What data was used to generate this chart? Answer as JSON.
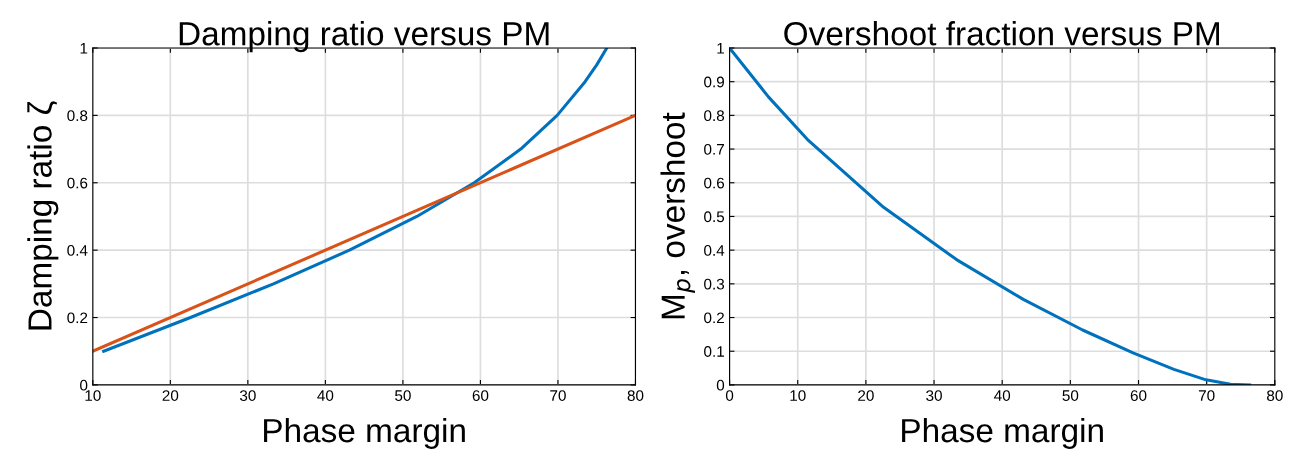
{
  "chart_data": [
    {
      "type": "line",
      "title": "Damping ratio versus PM",
      "xlabel": "Phase margin",
      "ylabel": "Damping ratio ζ",
      "xlim": [
        10,
        80
      ],
      "ylim": [
        0,
        1
      ],
      "xticks": [
        10,
        20,
        30,
        40,
        50,
        60,
        70,
        80
      ],
      "yticks": [
        0,
        0.2,
        0.4,
        0.6,
        0.8,
        1
      ],
      "grid": true,
      "series": [
        {
          "color": "#0072bd",
          "x": [
            11.4,
            22.6,
            33.3,
            43.1,
            51.8,
            59.2,
            65.2,
            69.9,
            73.5,
            75.0,
            76.3
          ],
          "values": [
            0.1,
            0.2,
            0.3,
            0.4,
            0.5,
            0.6,
            0.7,
            0.8,
            0.9,
            0.95,
            1.0
          ]
        },
        {
          "color": "#d95319",
          "x": [
            10,
            80
          ],
          "values": [
            0.1,
            0.8
          ]
        }
      ]
    },
    {
      "type": "line",
      "title": "Overshoot fraction versus PM",
      "xlabel": "Phase margin",
      "ylabel": "M$_{p}$, overshoot",
      "xlim": [
        0,
        80
      ],
      "ylim": [
        0,
        1
      ],
      "xticks": [
        0,
        10,
        20,
        30,
        40,
        50,
        60,
        70,
        80
      ],
      "yticks": [
        0,
        0.1,
        0.2,
        0.3,
        0.4,
        0.5,
        0.6,
        0.7,
        0.8,
        0.9,
        1
      ],
      "grid": true,
      "series": [
        {
          "color": "#0072bd",
          "x": [
            0,
            5.7,
            11.4,
            22.6,
            33.3,
            43.1,
            51.8,
            59.2,
            65.2,
            69.9,
            73.5,
            76.3
          ],
          "values": [
            1.0,
            0.855,
            0.729,
            0.527,
            0.372,
            0.254,
            0.163,
            0.095,
            0.046,
            0.015,
            0.002,
            0.0
          ]
        }
      ]
    }
  ]
}
